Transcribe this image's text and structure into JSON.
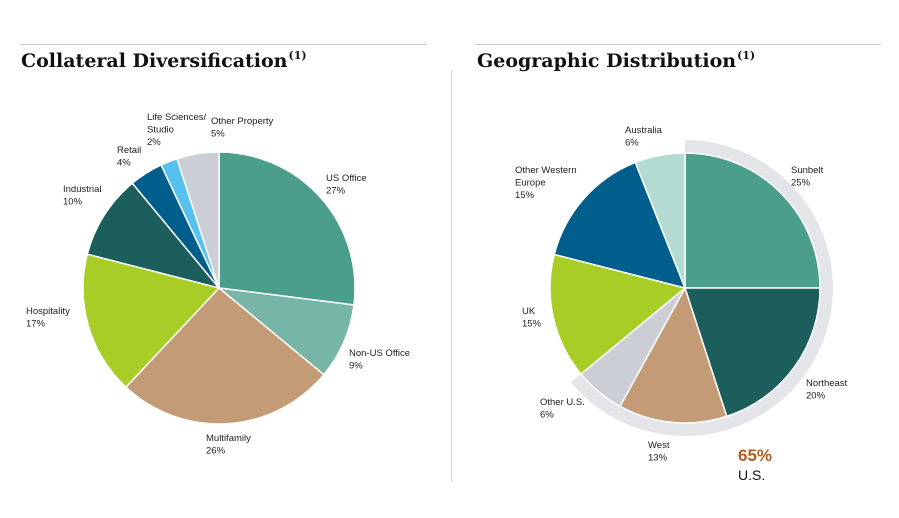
{
  "left": {
    "title": "Collateral Diversification",
    "footnote": "(1)"
  },
  "right": {
    "title": "Geographic Distribution",
    "footnote": "(1)",
    "callout_value": "65%",
    "callout_label": "U.S."
  },
  "chart_data": [
    {
      "type": "pie",
      "title": "Collateral Diversification",
      "slices": [
        {
          "label": [
            "US Office",
            "27%"
          ],
          "value": 27,
          "color": "#4a9e8a"
        },
        {
          "label": [
            "Non-US Office",
            "9%"
          ],
          "value": 9,
          "color": "#77b6a6"
        },
        {
          "label": [
            "Multifamily",
            "26%"
          ],
          "value": 26,
          "color": "#c39c77"
        },
        {
          "label": [
            "Hospitality",
            "17%"
          ],
          "value": 17,
          "color": "#a7cd26"
        },
        {
          "label": [
            "Industrial",
            "10%"
          ],
          "value": 10,
          "color": "#1c5e5b"
        },
        {
          "label": [
            "Retail",
            "4%"
          ],
          "value": 4,
          "color": "#005e8c"
        },
        {
          "label": [
            "Life Sciences/",
            "Studio",
            "2%"
          ],
          "value": 2,
          "color": "#56c1ec"
        },
        {
          "label": [
            "Other Property",
            "5%"
          ],
          "value": 5,
          "color": "#ccced6"
        }
      ]
    },
    {
      "type": "pie",
      "title": "Geographic Distribution",
      "slices": [
        {
          "label": [
            "Sunbelt",
            "25%"
          ],
          "value": 25,
          "color": "#4a9e8a",
          "us": true
        },
        {
          "label": [
            "Northeast",
            "20%"
          ],
          "value": 20,
          "color": "#1c5e5b",
          "us": true
        },
        {
          "label": [
            "West",
            "13%"
          ],
          "value": 13,
          "color": "#c39c77",
          "us": true
        },
        {
          "label": [
            "Other U.S.",
            "6%"
          ],
          "value": 6,
          "color": "#ccced6",
          "us": true
        },
        {
          "label": [
            "UK",
            "15%"
          ],
          "value": 15,
          "color": "#a7cd26",
          "us": false
        },
        {
          "label": [
            "Other Western",
            "Europe",
            "15%"
          ],
          "value": 15,
          "color": "#005e8c",
          "us": false
        },
        {
          "label": [
            "Australia",
            "6%"
          ],
          "value": 6,
          "color": "#b3dbd1",
          "us": false
        }
      ],
      "us_ring_color": "#e4e5e9"
    }
  ]
}
